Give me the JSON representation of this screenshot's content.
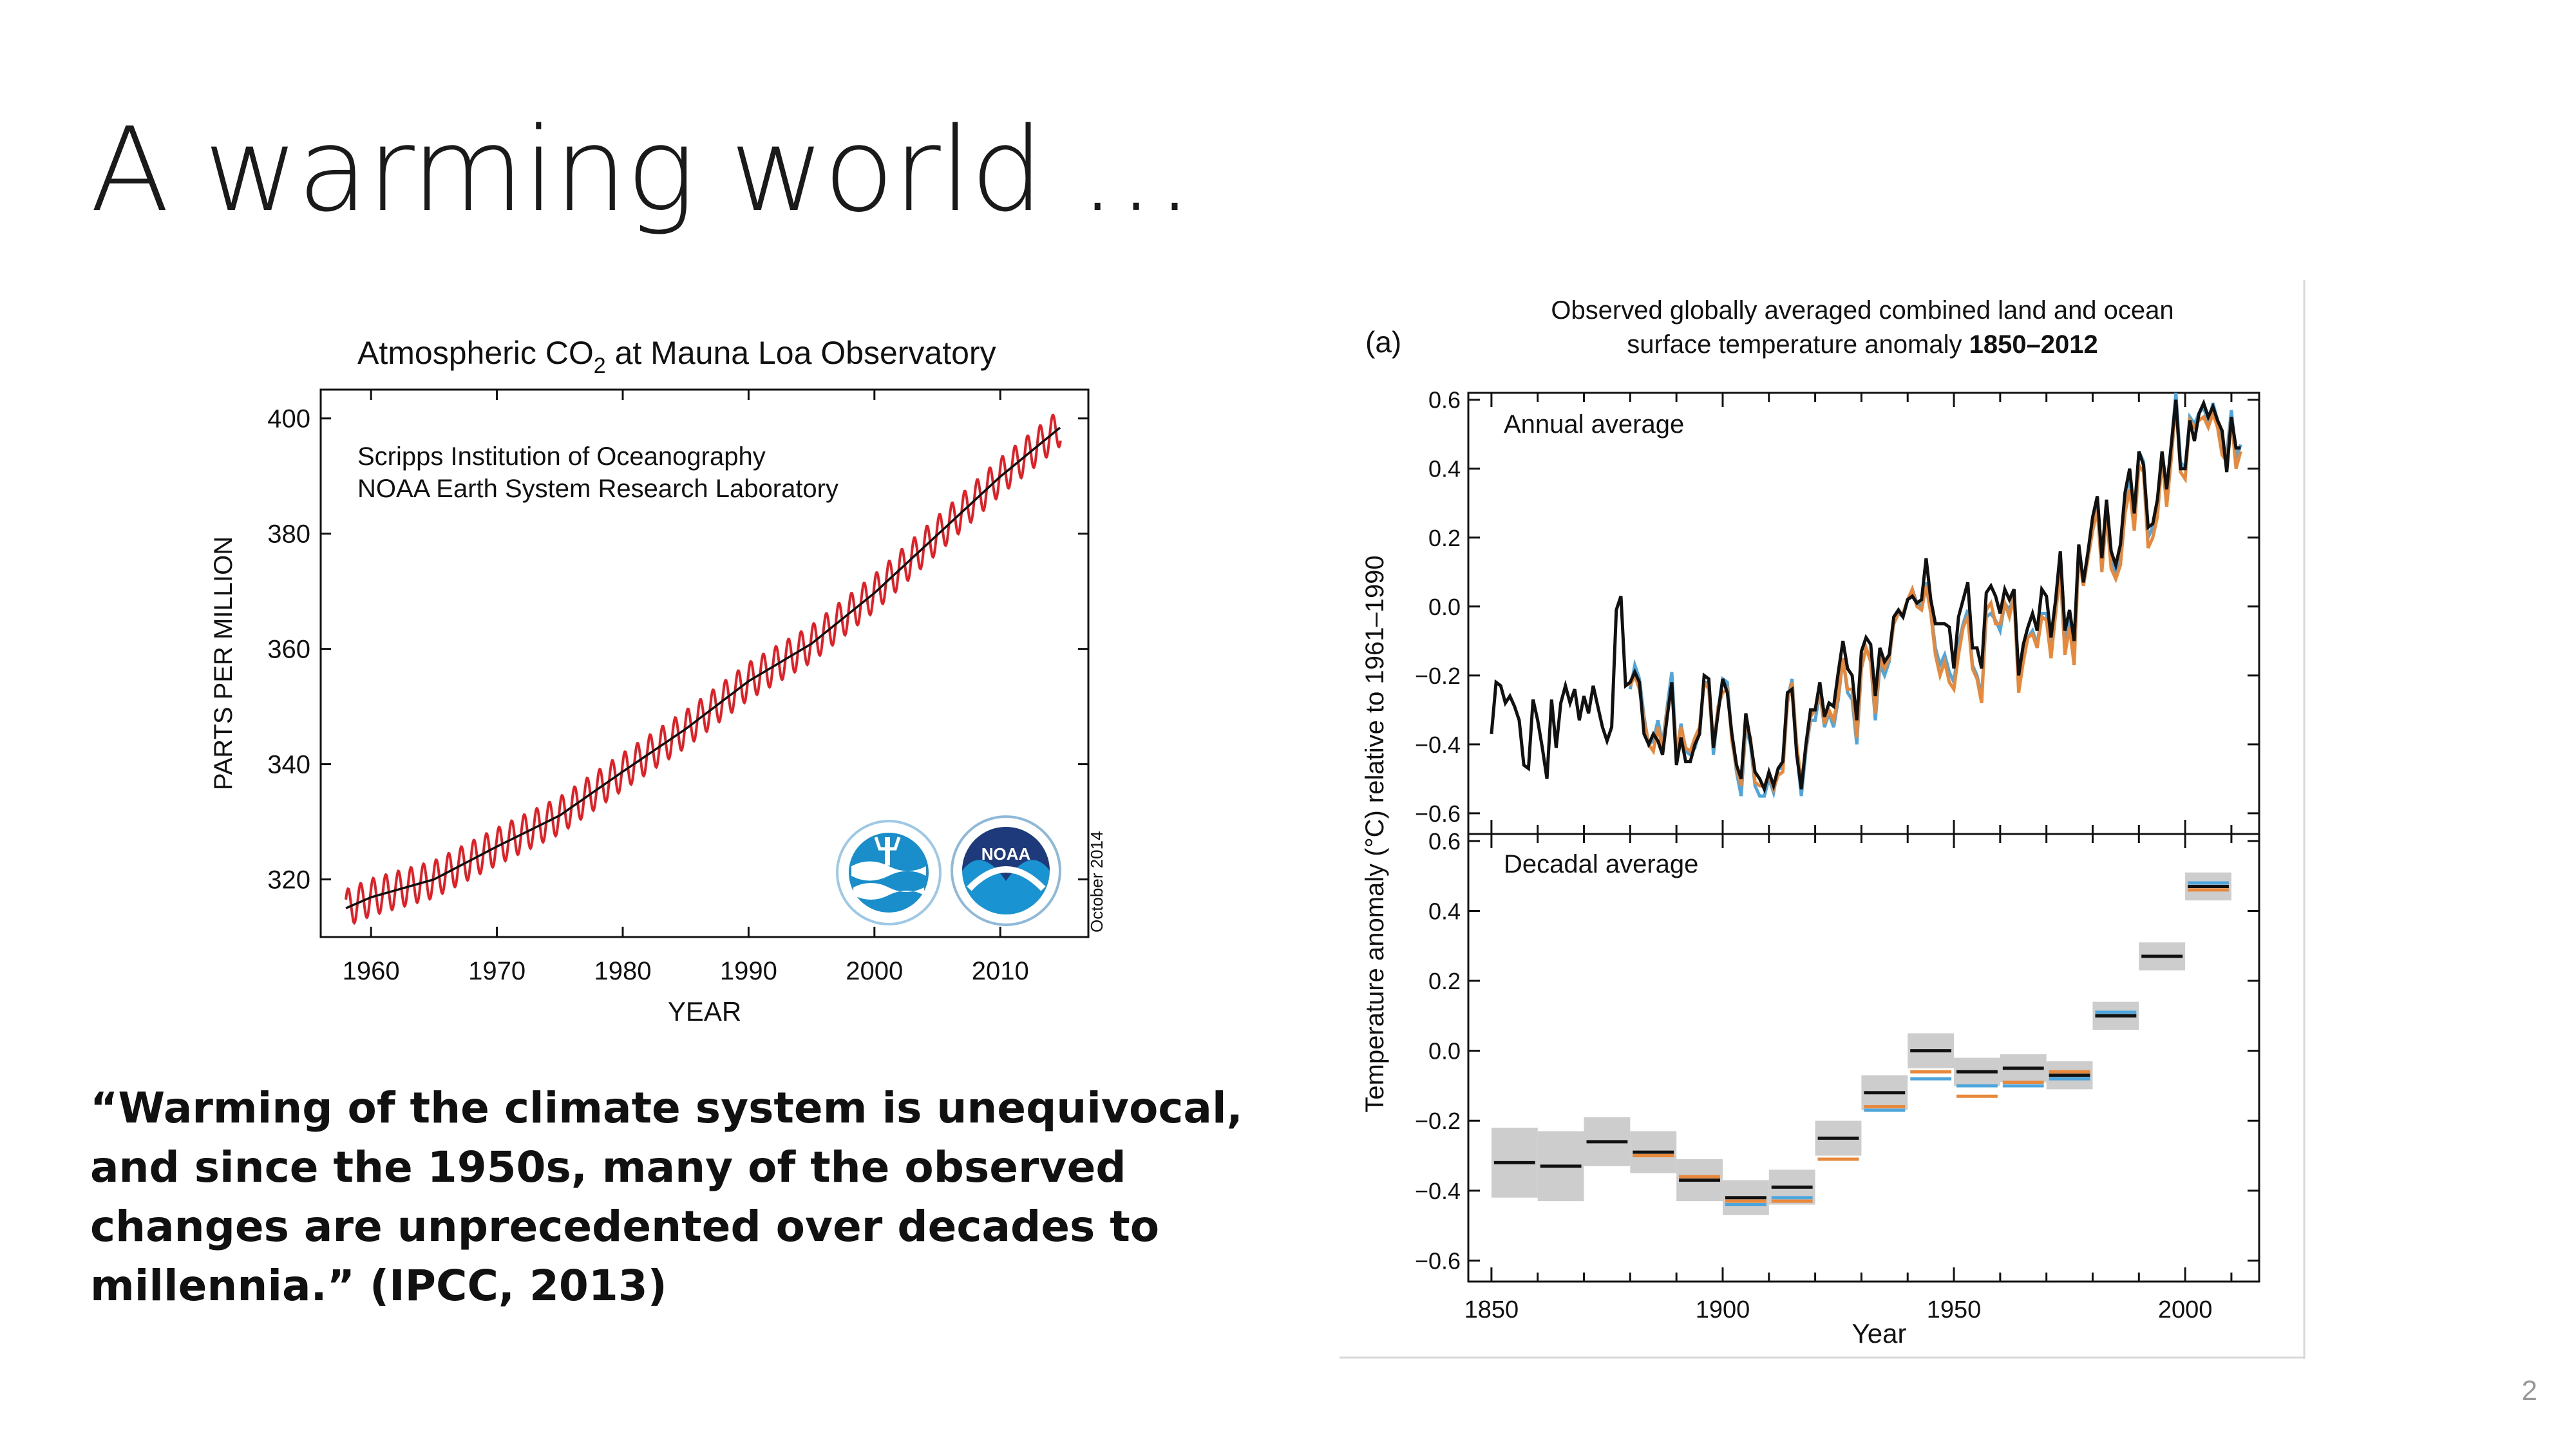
{
  "slide": {
    "title": "A warming world …",
    "quote": "“Warming of the climate system is unequivocal, and since the 1950s, many of the observed changes are unprecedented over decades to millennia.” (IPCC, 2013)",
    "page_number": "2"
  },
  "colors": {
    "co2_monthly": "#e31f26",
    "co2_trend": "#111111",
    "hadcrut": "#111111",
    "noaa": "#e8883a",
    "gistemp": "#4fa6dc",
    "uncertainty": "#c8c8c8"
  },
  "co2_chart": {
    "title_main": "Atmospheric CO",
    "title_sub": "2",
    "title_rest": " at Mauna Loa Observatory",
    "credit_line1": "Scripps Institution of Oceanography",
    "credit_line2": "NOAA Earth System Research Laboratory",
    "date_stamp": "October 2014",
    "logo_left": "scripps-logo",
    "logo_right_text": "NOAA",
    "logo_right": "noaa-logo"
  },
  "temp_chart": {
    "panel_label": "(a)",
    "title_line1": "Observed globally averaged combined land and ocean",
    "title_line2_prefix": "surface temperature anomaly ",
    "title_line2_years": "1850–2012",
    "panel1_label": "Annual average",
    "panel2_label": "Decadal average"
  },
  "chart_data": [
    {
      "type": "line",
      "title": "Atmospheric CO2 at Mauna Loa Observatory",
      "xlabel": "YEAR",
      "ylabel": "PARTS PER MILLION",
      "xlim": [
        1956,
        2017
      ],
      "ylim": [
        310,
        405
      ],
      "xticks": [
        "1960",
        "1970",
        "1980",
        "1990",
        "2000",
        "2010"
      ],
      "yticks": [
        "320",
        "340",
        "360",
        "380",
        "400"
      ],
      "grid": false,
      "series": [
        {
          "x": [
            1958,
            1960,
            1965,
            1970,
            1975,
            1980,
            1985,
            1990,
            1995,
            2000,
            2005,
            2010,
            2014.8
          ],
          "values": [
            315.0,
            316.9,
            320.0,
            325.7,
            331.1,
            338.7,
            346.1,
            354.4,
            360.9,
            369.7,
            379.8,
            389.9,
            398.5
          ],
          "seasonal_amplitude": 3.2
        }
      ]
    },
    {
      "type": "line",
      "title": "Observed globally averaged combined land and ocean surface temperature anomaly 1850–2012",
      "panel": "Annual average",
      "xlabel": "Year",
      "ylabel": "Temperature anomaly (°C) relative to 1961–1990",
      "xlim": [
        1845,
        2016
      ],
      "ylim": [
        -0.66,
        0.62
      ],
      "yticks": [
        "0.6",
        "0.4",
        "0.2",
        "0.0",
        "−0.2",
        "−0.4",
        "−0.6"
      ],
      "x": [
        1850,
        1851,
        1852,
        1853,
        1854,
        1855,
        1856,
        1857,
        1858,
        1859,
        1860,
        1861,
        1862,
        1863,
        1864,
        1865,
        1866,
        1867,
        1868,
        1869,
        1870,
        1871,
        1872,
        1873,
        1874,
        1875,
        1876,
        1877,
        1878,
        1879,
        1880,
        1881,
        1882,
        1883,
        1884,
        1885,
        1886,
        1887,
        1888,
        1889,
        1890,
        1891,
        1892,
        1893,
        1894,
        1895,
        1896,
        1897,
        1898,
        1899,
        1900,
        1901,
        1902,
        1903,
        1904,
        1905,
        1906,
        1907,
        1908,
        1909,
        1910,
        1911,
        1912,
        1913,
        1914,
        1915,
        1916,
        1917,
        1918,
        1919,
        1920,
        1921,
        1922,
        1923,
        1924,
        1925,
        1926,
        1927,
        1928,
        1929,
        1930,
        1931,
        1932,
        1933,
        1934,
        1935,
        1936,
        1937,
        1938,
        1939,
        1940,
        1941,
        1942,
        1943,
        1944,
        1945,
        1946,
        1947,
        1948,
        1949,
        1950,
        1951,
        1952,
        1953,
        1954,
        1955,
        1956,
        1957,
        1958,
        1959,
        1960,
        1961,
        1962,
        1963,
        1964,
        1965,
        1966,
        1967,
        1968,
        1969,
        1970,
        1971,
        1972,
        1973,
        1974,
        1975,
        1976,
        1977,
        1978,
        1979,
        1980,
        1981,
        1982,
        1983,
        1984,
        1985,
        1986,
        1987,
        1988,
        1989,
        1990,
        1991,
        1992,
        1993,
        1994,
        1995,
        1996,
        1997,
        1998,
        1999,
        2000,
        2001,
        2002,
        2003,
        2004,
        2005,
        2006,
        2007,
        2008,
        2009,
        2010,
        2011,
        2012
      ],
      "series": [
        {
          "name": "",
          "values": [
            -0.37,
            -0.22,
            -0.23,
            -0.28,
            -0.26,
            -0.29,
            -0.33,
            -0.46,
            -0.47,
            -0.27,
            -0.33,
            -0.41,
            -0.5,
            -0.27,
            -0.41,
            -0.28,
            -0.23,
            -0.28,
            -0.24,
            -0.33,
            -0.26,
            -0.31,
            -0.23,
            -0.29,
            -0.35,
            -0.39,
            -0.35,
            -0.01,
            0.03,
            -0.23,
            -0.22,
            -0.19,
            -0.22,
            -0.37,
            -0.4,
            -0.37,
            -0.39,
            -0.43,
            -0.32,
            -0.22,
            -0.46,
            -0.38,
            -0.45,
            -0.45,
            -0.4,
            -0.37,
            -0.2,
            -0.21,
            -0.41,
            -0.31,
            -0.21,
            -0.25,
            -0.37,
            -0.46,
            -0.5,
            -0.31,
            -0.39,
            -0.48,
            -0.5,
            -0.53,
            -0.48,
            -0.52,
            -0.47,
            -0.45,
            -0.25,
            -0.24,
            -0.43,
            -0.53,
            -0.4,
            -0.3,
            -0.3,
            -0.22,
            -0.32,
            -0.28,
            -0.29,
            -0.19,
            -0.1,
            -0.18,
            -0.2,
            -0.33,
            -0.13,
            -0.09,
            -0.11,
            -0.26,
            -0.12,
            -0.16,
            -0.14,
            -0.03,
            -0.01,
            -0.03,
            0.02,
            0.03,
            0.01,
            0.02,
            0.14,
            0.02,
            -0.05,
            -0.05,
            -0.05,
            -0.06,
            -0.18,
            -0.03,
            0.02,
            0.07,
            -0.12,
            -0.12,
            -0.18,
            0.04,
            0.06,
            0.03,
            -0.02,
            0.05,
            0.02,
            0.05,
            -0.2,
            -0.11,
            -0.06,
            -0.02,
            -0.07,
            0.05,
            0.03,
            -0.09,
            0.02,
            0.16,
            -0.07,
            -0.01,
            -0.1,
            0.18,
            0.07,
            0.16,
            0.26,
            0.32,
            0.14,
            0.31,
            0.16,
            0.12,
            0.18,
            0.33,
            0.4,
            0.27,
            0.45,
            0.41,
            0.23,
            0.24,
            0.31,
            0.45,
            0.34,
            0.47,
            0.6,
            0.4,
            0.4,
            0.54,
            0.48,
            0.56,
            0.59,
            0.55,
            0.58,
            0.54,
            0.51,
            0.39,
            0.55,
            0.46,
            0.46
          ]
        },
        {
          "name": "",
          "values": [
            null,
            null,
            null,
            null,
            null,
            null,
            null,
            null,
            null,
            null,
            null,
            null,
            null,
            null,
            null,
            null,
            null,
            null,
            null,
            null,
            null,
            null,
            null,
            null,
            null,
            null,
            null,
            null,
            null,
            null,
            -0.23,
            -0.2,
            -0.24,
            -0.33,
            -0.4,
            -0.42,
            -0.35,
            -0.41,
            -0.3,
            -0.24,
            -0.42,
            -0.35,
            -0.41,
            -0.42,
            -0.38,
            -0.35,
            -0.22,
            -0.24,
            -0.41,
            -0.29,
            -0.25,
            -0.24,
            -0.39,
            -0.47,
            -0.52,
            -0.34,
            -0.38,
            -0.51,
            -0.52,
            -0.52,
            -0.49,
            -0.53,
            -0.49,
            -0.48,
            -0.28,
            -0.22,
            -0.4,
            -0.51,
            -0.41,
            -0.32,
            -0.3,
            -0.25,
            -0.34,
            -0.3,
            -0.33,
            -0.26,
            -0.15,
            -0.24,
            -0.24,
            -0.38,
            -0.18,
            -0.12,
            -0.16,
            -0.31,
            -0.15,
            -0.18,
            -0.15,
            -0.05,
            -0.02,
            -0.02,
            0.02,
            0.05,
            0.0,
            -0.01,
            0.06,
            -0.02,
            -0.14,
            -0.2,
            -0.16,
            -0.22,
            -0.24,
            -0.14,
            -0.06,
            -0.03,
            -0.18,
            -0.21,
            -0.28,
            -0.01,
            0.01,
            -0.05,
            -0.05,
            0.01,
            -0.03,
            0.03,
            -0.25,
            -0.16,
            -0.09,
            -0.08,
            -0.12,
            -0.03,
            -0.04,
            -0.15,
            -0.02,
            0.1,
            -0.14,
            -0.06,
            -0.17,
            0.15,
            0.06,
            0.14,
            0.22,
            0.28,
            0.1,
            0.27,
            0.11,
            0.08,
            0.12,
            0.27,
            0.34,
            0.22,
            0.41,
            0.39,
            0.17,
            0.2,
            0.26,
            0.43,
            0.29,
            0.43,
            0.59,
            0.39,
            0.37,
            0.54,
            0.52,
            0.54,
            0.55,
            0.52,
            0.56,
            0.52,
            0.44,
            0.42,
            0.55,
            0.4,
            0.45
          ]
        },
        {
          "name": "",
          "values": [
            null,
            null,
            null,
            null,
            null,
            null,
            null,
            null,
            null,
            null,
            null,
            null,
            null,
            null,
            null,
            null,
            null,
            null,
            null,
            null,
            null,
            null,
            null,
            null,
            null,
            null,
            null,
            null,
            null,
            null,
            -0.24,
            -0.17,
            -0.21,
            -0.32,
            -0.4,
            -0.39,
            -0.33,
            -0.4,
            -0.29,
            -0.19,
            -0.43,
            -0.34,
            -0.42,
            -0.43,
            -0.41,
            -0.36,
            -0.22,
            -0.22,
            -0.43,
            -0.3,
            -0.21,
            -0.22,
            -0.38,
            -0.48,
            -0.55,
            -0.35,
            -0.4,
            -0.52,
            -0.55,
            -0.55,
            -0.5,
            -0.54,
            -0.47,
            -0.47,
            -0.27,
            -0.21,
            -0.42,
            -0.55,
            -0.42,
            -0.33,
            -0.33,
            -0.25,
            -0.35,
            -0.31,
            -0.35,
            -0.27,
            -0.15,
            -0.25,
            -0.27,
            -0.4,
            -0.18,
            -0.12,
            -0.16,
            -0.33,
            -0.17,
            -0.2,
            -0.16,
            -0.04,
            -0.02,
            -0.03,
            0.02,
            0.05,
            0.01,
            0.0,
            0.07,
            -0.01,
            -0.12,
            -0.17,
            -0.14,
            -0.19,
            -0.22,
            -0.11,
            -0.05,
            -0.01,
            -0.17,
            -0.2,
            -0.26,
            -0.03,
            -0.02,
            -0.04,
            -0.07,
            0.01,
            -0.01,
            0.03,
            -0.23,
            -0.15,
            -0.09,
            -0.07,
            -0.11,
            -0.02,
            -0.02,
            -0.14,
            -0.02,
            0.14,
            -0.1,
            -0.04,
            -0.14,
            0.16,
            0.06,
            0.15,
            0.25,
            0.3,
            0.12,
            0.3,
            0.14,
            0.1,
            0.15,
            0.31,
            0.38,
            0.24,
            0.45,
            0.42,
            0.2,
            0.23,
            0.29,
            0.45,
            0.33,
            0.47,
            0.62,
            0.42,
            0.4,
            0.55,
            0.53,
            0.56,
            0.58,
            0.53,
            0.59,
            0.54,
            0.47,
            0.44,
            0.57,
            0.43,
            0.47
          ]
        }
      ]
    },
    {
      "type": "bar",
      "panel": "Decadal average",
      "xlabel": "Year",
      "xticks": [
        "1850",
        "1900",
        "1950",
        "2000"
      ],
      "ylim": [
        -0.66,
        0.62
      ],
      "yticks": [
        "0.6",
        "0.4",
        "0.2",
        "0.0",
        "−0.2",
        "−0.4",
        "−0.6"
      ],
      "categories": [
        "1850",
        "1860",
        "1870",
        "1880",
        "1890",
        "1900",
        "1910",
        "1920",
        "1930",
        "1940",
        "1950",
        "1960",
        "1970",
        "1980",
        "1990",
        "2000"
      ],
      "uncertainty": [
        0.1,
        0.1,
        0.07,
        0.06,
        0.06,
        0.05,
        0.05,
        0.05,
        0.05,
        0.05,
        0.04,
        0.04,
        0.04,
        0.04,
        0.04,
        0.04
      ],
      "series": [
        {
          "name": "",
          "values": [
            -0.32,
            -0.33,
            -0.26,
            -0.29,
            -0.37,
            -0.42,
            -0.39,
            -0.25,
            -0.12,
            0.0,
            -0.06,
            -0.05,
            -0.07,
            0.1,
            0.27,
            0.47
          ]
        },
        {
          "name": "",
          "values": [
            null,
            null,
            null,
            -0.3,
            -0.36,
            -0.43,
            -0.43,
            -0.31,
            -0.16,
            -0.06,
            -0.13,
            -0.09,
            -0.06,
            0.1,
            0.27,
            0.46
          ]
        },
        {
          "name": "",
          "values": [
            null,
            null,
            null,
            -0.3,
            -0.37,
            -0.44,
            -0.42,
            -0.31,
            -0.17,
            -0.08,
            -0.1,
            -0.1,
            -0.08,
            0.11,
            0.27,
            0.48
          ]
        }
      ]
    }
  ]
}
